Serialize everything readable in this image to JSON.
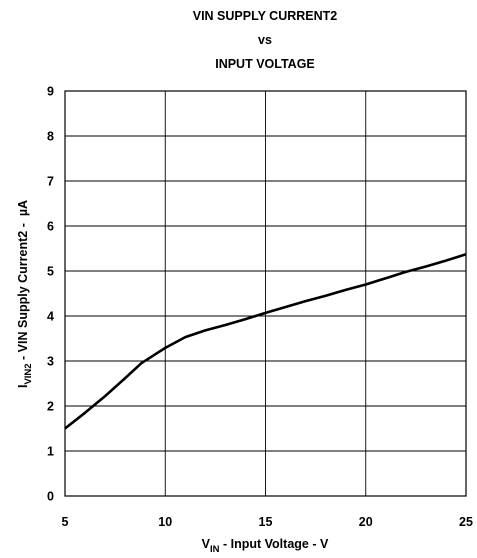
{
  "chart_data": {
    "type": "line",
    "title_lines": [
      "VIN SUPPLY CURRENT2",
      "vs",
      "INPUT VOLTAGE"
    ],
    "xlabel": {
      "main": "V",
      "sub": "IN",
      "rest": " - Input Voltage - V"
    },
    "ylabel": {
      "main": "I",
      "sub": "VIN2",
      "rest": " - VIN Supply Current2 -  µA"
    },
    "xlim": [
      5,
      25
    ],
    "ylim": [
      0,
      9
    ],
    "x_ticks": [
      5,
      10,
      15,
      20,
      25
    ],
    "y_ticks": [
      0,
      1,
      2,
      3,
      4,
      5,
      6,
      7,
      8,
      9
    ],
    "grid": true,
    "series": [
      {
        "x": [
          5,
          6,
          7,
          8,
          8.8,
          9.5,
          10,
          11,
          12,
          13,
          14,
          15,
          16,
          17,
          18,
          19,
          20,
          21,
          22,
          23,
          24,
          25
        ],
        "y": [
          1.5,
          1.85,
          2.22,
          2.62,
          2.95,
          3.15,
          3.29,
          3.53,
          3.68,
          3.8,
          3.93,
          4.07,
          4.2,
          4.33,
          4.45,
          4.58,
          4.7,
          4.84,
          4.98,
          5.1,
          5.23,
          5.37
        ]
      }
    ],
    "line_color": "#000000"
  }
}
